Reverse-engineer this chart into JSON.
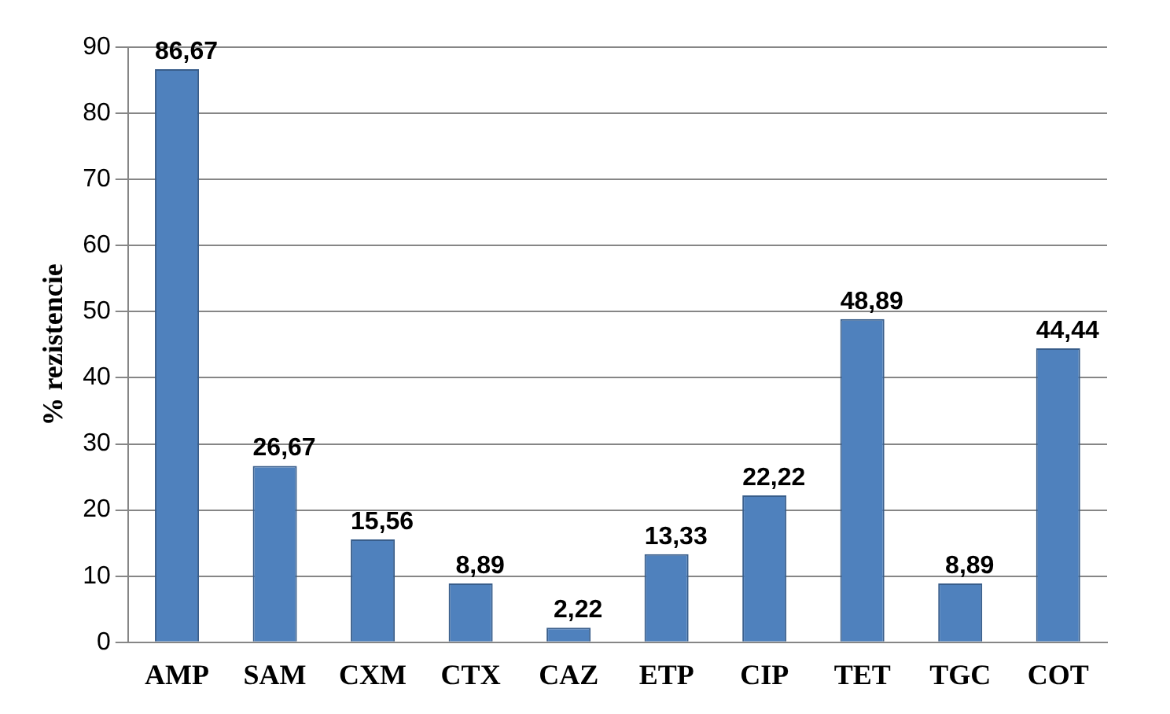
{
  "chart_data": {
    "type": "bar",
    "ylabel": "% rezistencie",
    "categories": [
      "AMP",
      "SAM",
      "CXM",
      "CTX",
      "CAZ",
      "ETP",
      "CIP",
      "TET",
      "TGC",
      "COT"
    ],
    "values": [
      86.67,
      26.67,
      15.56,
      8.89,
      2.22,
      13.33,
      22.22,
      48.89,
      8.89,
      44.44
    ],
    "value_labels": [
      "86,67",
      "26,67",
      "15,56",
      "8,89",
      "2,22",
      "13,33",
      "22,22",
      "48,89",
      "8,89",
      "44,44"
    ],
    "color": "#4f81bd",
    "ylim": [
      0,
      90
    ],
    "yticks": [
      0,
      10,
      20,
      30,
      40,
      50,
      60,
      70,
      80,
      90
    ],
    "grid": "y"
  }
}
